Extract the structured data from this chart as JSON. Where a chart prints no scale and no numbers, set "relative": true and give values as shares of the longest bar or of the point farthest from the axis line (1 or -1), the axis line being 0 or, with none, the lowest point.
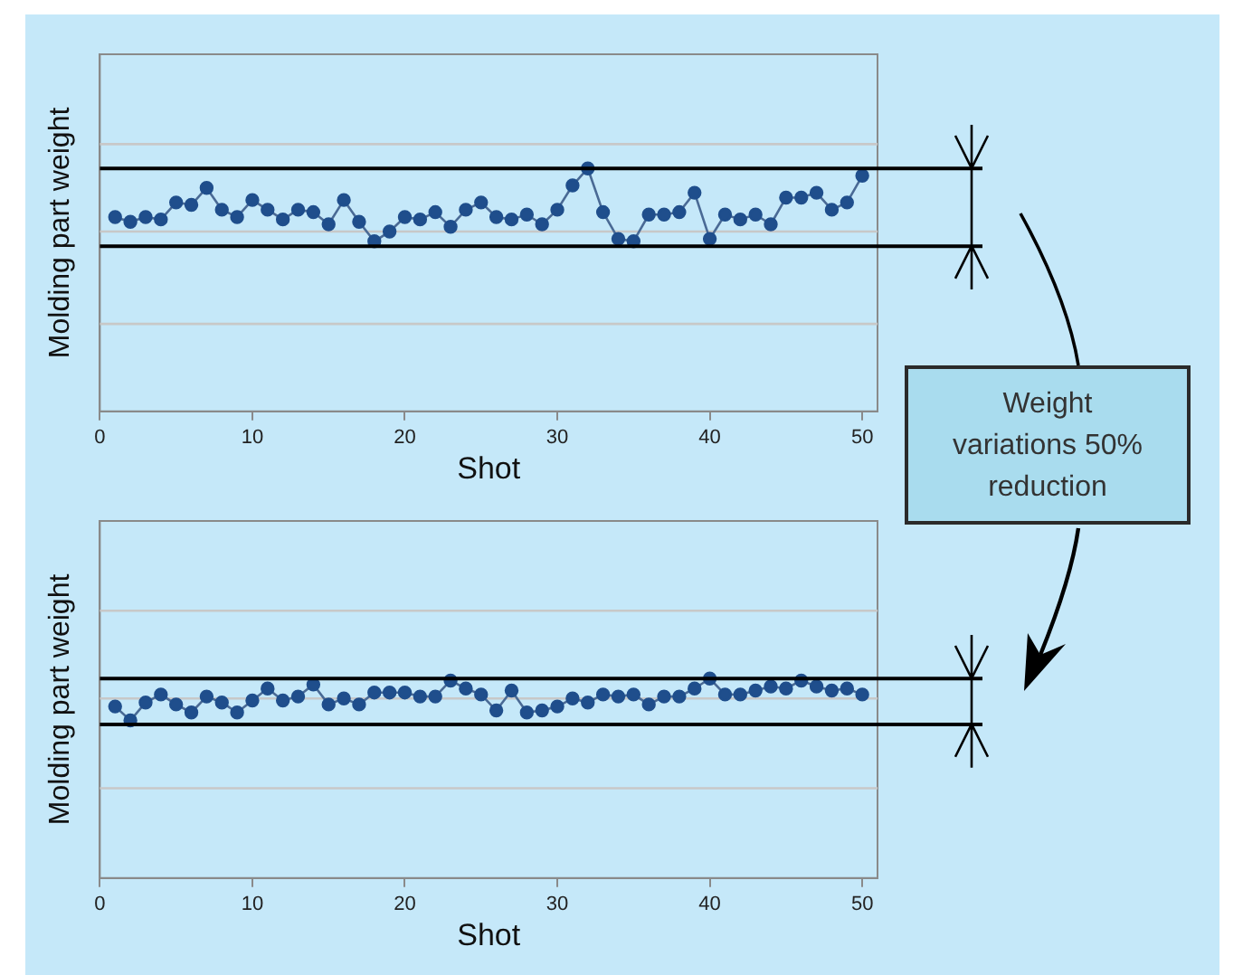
{
  "chart_data": [
    {
      "type": "line",
      "relative": true,
      "xlabel": "Shot",
      "ylabel": "Molding part weight",
      "xlim": [
        0,
        51
      ],
      "xticks": [
        0,
        10,
        20,
        30,
        40,
        50
      ],
      "marker": "circle",
      "line_style": "solid",
      "x": [
        1,
        2,
        3,
        4,
        5,
        6,
        7,
        8,
        9,
        10,
        11,
        12,
        13,
        14,
        15,
        16,
        17,
        18,
        19,
        20,
        21,
        22,
        23,
        24,
        25,
        26,
        27,
        28,
        29,
        30,
        31,
        32,
        33,
        34,
        35,
        36,
        37,
        38,
        39,
        40,
        41,
        42,
        43,
        44,
        45,
        46,
        47,
        48,
        49,
        50
      ],
      "series": [
        {
          "color": "#1f4e8c",
          "values": [
            0.8,
            0.78,
            0.8,
            0.79,
            0.86,
            0.85,
            0.92,
            0.83,
            0.8,
            0.87,
            0.83,
            0.79,
            0.83,
            0.82,
            0.77,
            0.87,
            0.78,
            0.7,
            0.74,
            0.8,
            0.79,
            0.82,
            0.76,
            0.83,
            0.86,
            0.8,
            0.79,
            0.81,
            0.77,
            0.83,
            0.93,
            1,
            0.82,
            0.71,
            0.7,
            0.81,
            0.81,
            0.82,
            0.9,
            0.71,
            0.81,
            0.79,
            0.81,
            0.77,
            0.88,
            0.88,
            0.9,
            0.83,
            0.86,
            0.97
          ]
        }
      ],
      "ref_lines": [
        {
          "axis": "y",
          "value": 1.0,
          "color": "#000000"
        },
        {
          "axis": "y",
          "value": 0.68,
          "color": "#000000"
        },
        {
          "axis": "y",
          "value": 1.1,
          "color": "#c8c8c8"
        },
        {
          "axis": "y",
          "value": 0.74,
          "color": "#c8c8c8"
        },
        {
          "axis": "y",
          "value": 0.36,
          "color": "#c8c8c8"
        }
      ],
      "annotations": [
        "Weight variations 50% reduction"
      ]
    },
    {
      "type": "line",
      "relative": true,
      "xlabel": "Shot",
      "ylabel": "Molding part weight",
      "xlim": [
        0,
        51
      ],
      "xticks": [
        0,
        10,
        20,
        30,
        40,
        50
      ],
      "marker": "circle",
      "line_style": "solid",
      "x": [
        1,
        2,
        3,
        4,
        5,
        6,
        7,
        8,
        9,
        10,
        11,
        12,
        13,
        14,
        15,
        16,
        17,
        18,
        19,
        20,
        21,
        22,
        23,
        24,
        25,
        26,
        27,
        28,
        29,
        30,
        31,
        32,
        33,
        34,
        35,
        36,
        37,
        38,
        39,
        40,
        41,
        42,
        43,
        44,
        45,
        46,
        47,
        48,
        49,
        50
      ],
      "series": [
        {
          "color": "#1f4e8c",
          "values": [
            0.86,
            0.79,
            0.88,
            0.92,
            0.87,
            0.83,
            0.91,
            0.88,
            0.83,
            0.89,
            0.95,
            0.89,
            0.91,
            0.97,
            0.87,
            0.9,
            0.87,
            0.93,
            0.93,
            0.93,
            0.91,
            0.91,
            0.99,
            0.95,
            0.92,
            0.84,
            0.94,
            0.83,
            0.84,
            0.86,
            0.9,
            0.88,
            0.92,
            0.91,
            0.92,
            0.87,
            0.91,
            0.91,
            0.95,
            1,
            0.92,
            0.92,
            0.94,
            0.96,
            0.95,
            0.99,
            0.96,
            0.94,
            0.95,
            0.92
          ]
        }
      ],
      "ref_lines": [
        {
          "axis": "y",
          "value": 1.0,
          "color": "#000000"
        },
        {
          "axis": "y",
          "value": 0.77,
          "color": "#000000"
        },
        {
          "axis": "y",
          "value": 1.34,
          "color": "#c8c8c8"
        },
        {
          "axis": "y",
          "value": 0.9,
          "color": "#c8c8c8"
        },
        {
          "axis": "y",
          "value": 0.45,
          "color": "#c8c8c8"
        }
      ]
    }
  ]
}
